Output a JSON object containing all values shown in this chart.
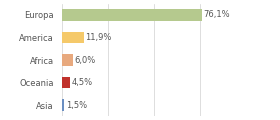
{
  "categories": [
    "Europa",
    "America",
    "Africa",
    "Oceania",
    "Asia"
  ],
  "values": [
    76.1,
    11.9,
    6.0,
    4.5,
    1.5
  ],
  "bar_colors": [
    "#b5c98e",
    "#f5c96a",
    "#e8a97e",
    "#c0312b",
    "#6b8fc2"
  ],
  "labels": [
    "76,1%",
    "11,9%",
    "6,0%",
    "4,5%",
    "1,5%"
  ],
  "background_color": "#ffffff",
  "xlim": [
    0,
    100
  ],
  "label_fontsize": 6.0,
  "tick_fontsize": 6.0,
  "bar_height": 0.5,
  "grid_lines": [
    0,
    25,
    50,
    75,
    100
  ],
  "grid_color": "#d0d0d0",
  "text_color": "#555555"
}
